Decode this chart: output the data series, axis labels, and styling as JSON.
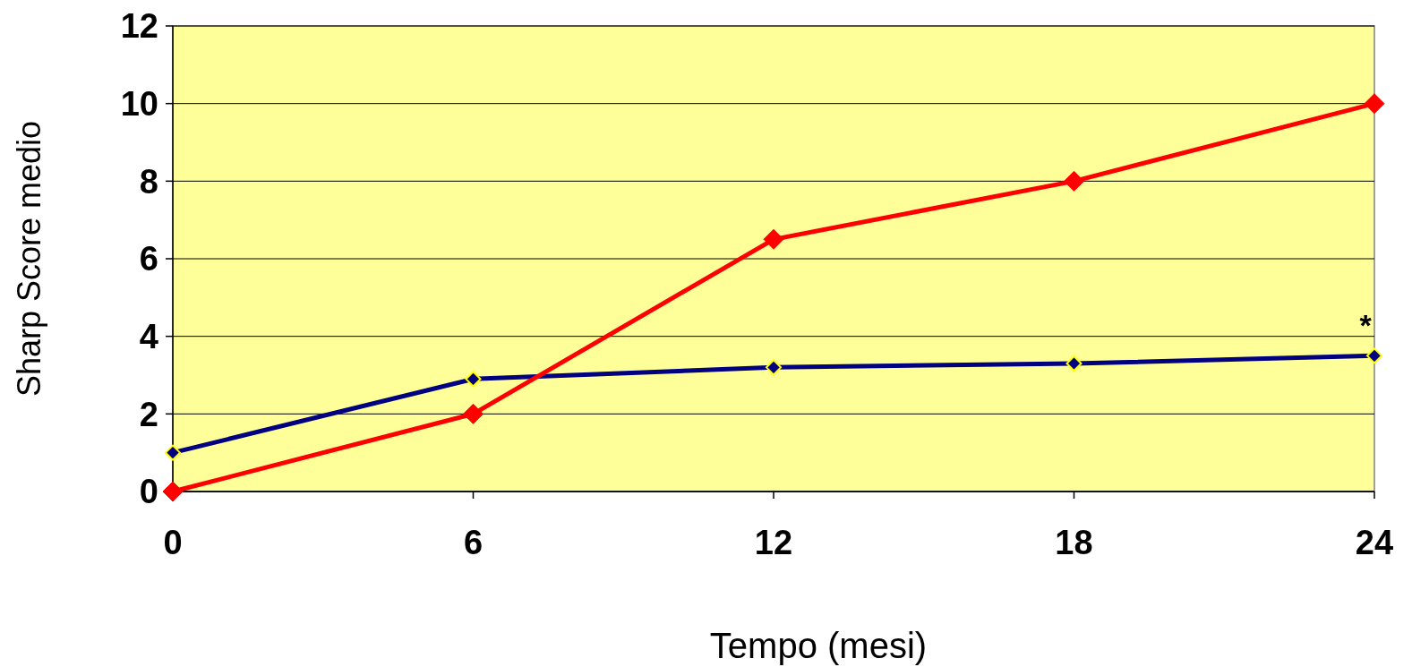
{
  "chart_data": {
    "type": "line",
    "xlabel": "Tempo (mesi)",
    "ylabel": "Sharp Score medio",
    "x": [
      0,
      6,
      12,
      18,
      24
    ],
    "xlim": [
      0,
      24
    ],
    "xticks": [
      0,
      6,
      12,
      18,
      24
    ],
    "ylim": [
      0,
      12
    ],
    "yticks": [
      0,
      2,
      4,
      6,
      8,
      10,
      12
    ],
    "grid": "y",
    "marker": "diamond",
    "line_style": "solid",
    "series": [
      {
        "color": "#000080",
        "values": [
          1.0,
          2.9,
          3.2,
          3.3,
          3.5
        ]
      },
      {
        "color": "#ff0000",
        "values": [
          0,
          2,
          6.5,
          8,
          10
        ]
      }
    ],
    "annotations": [
      "*"
    ]
  }
}
